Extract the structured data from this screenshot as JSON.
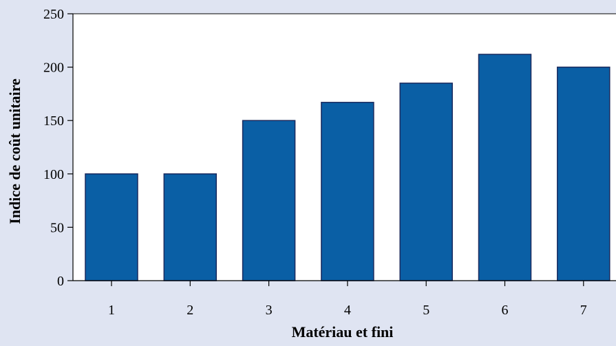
{
  "chart_data": {
    "type": "bar",
    "categories": [
      "1",
      "2",
      "3",
      "4",
      "5",
      "6",
      "7"
    ],
    "values": [
      100,
      100,
      150,
      167,
      185,
      212,
      200
    ],
    "title": "",
    "xlabel": "Matériau et fini",
    "ylabel": "Indice de coût unitaire",
    "ylim": [
      0,
      250
    ],
    "yticks": [
      "0",
      "50",
      "100",
      "150",
      "200",
      "250"
    ],
    "grid": false,
    "legend": "none",
    "colors": {
      "background": "#dfe4f2",
      "plot_area": "#ffffff",
      "bar_fill": "#0a5fa5",
      "bar_stroke": "#1a2a5e",
      "axis": "#000000"
    }
  }
}
